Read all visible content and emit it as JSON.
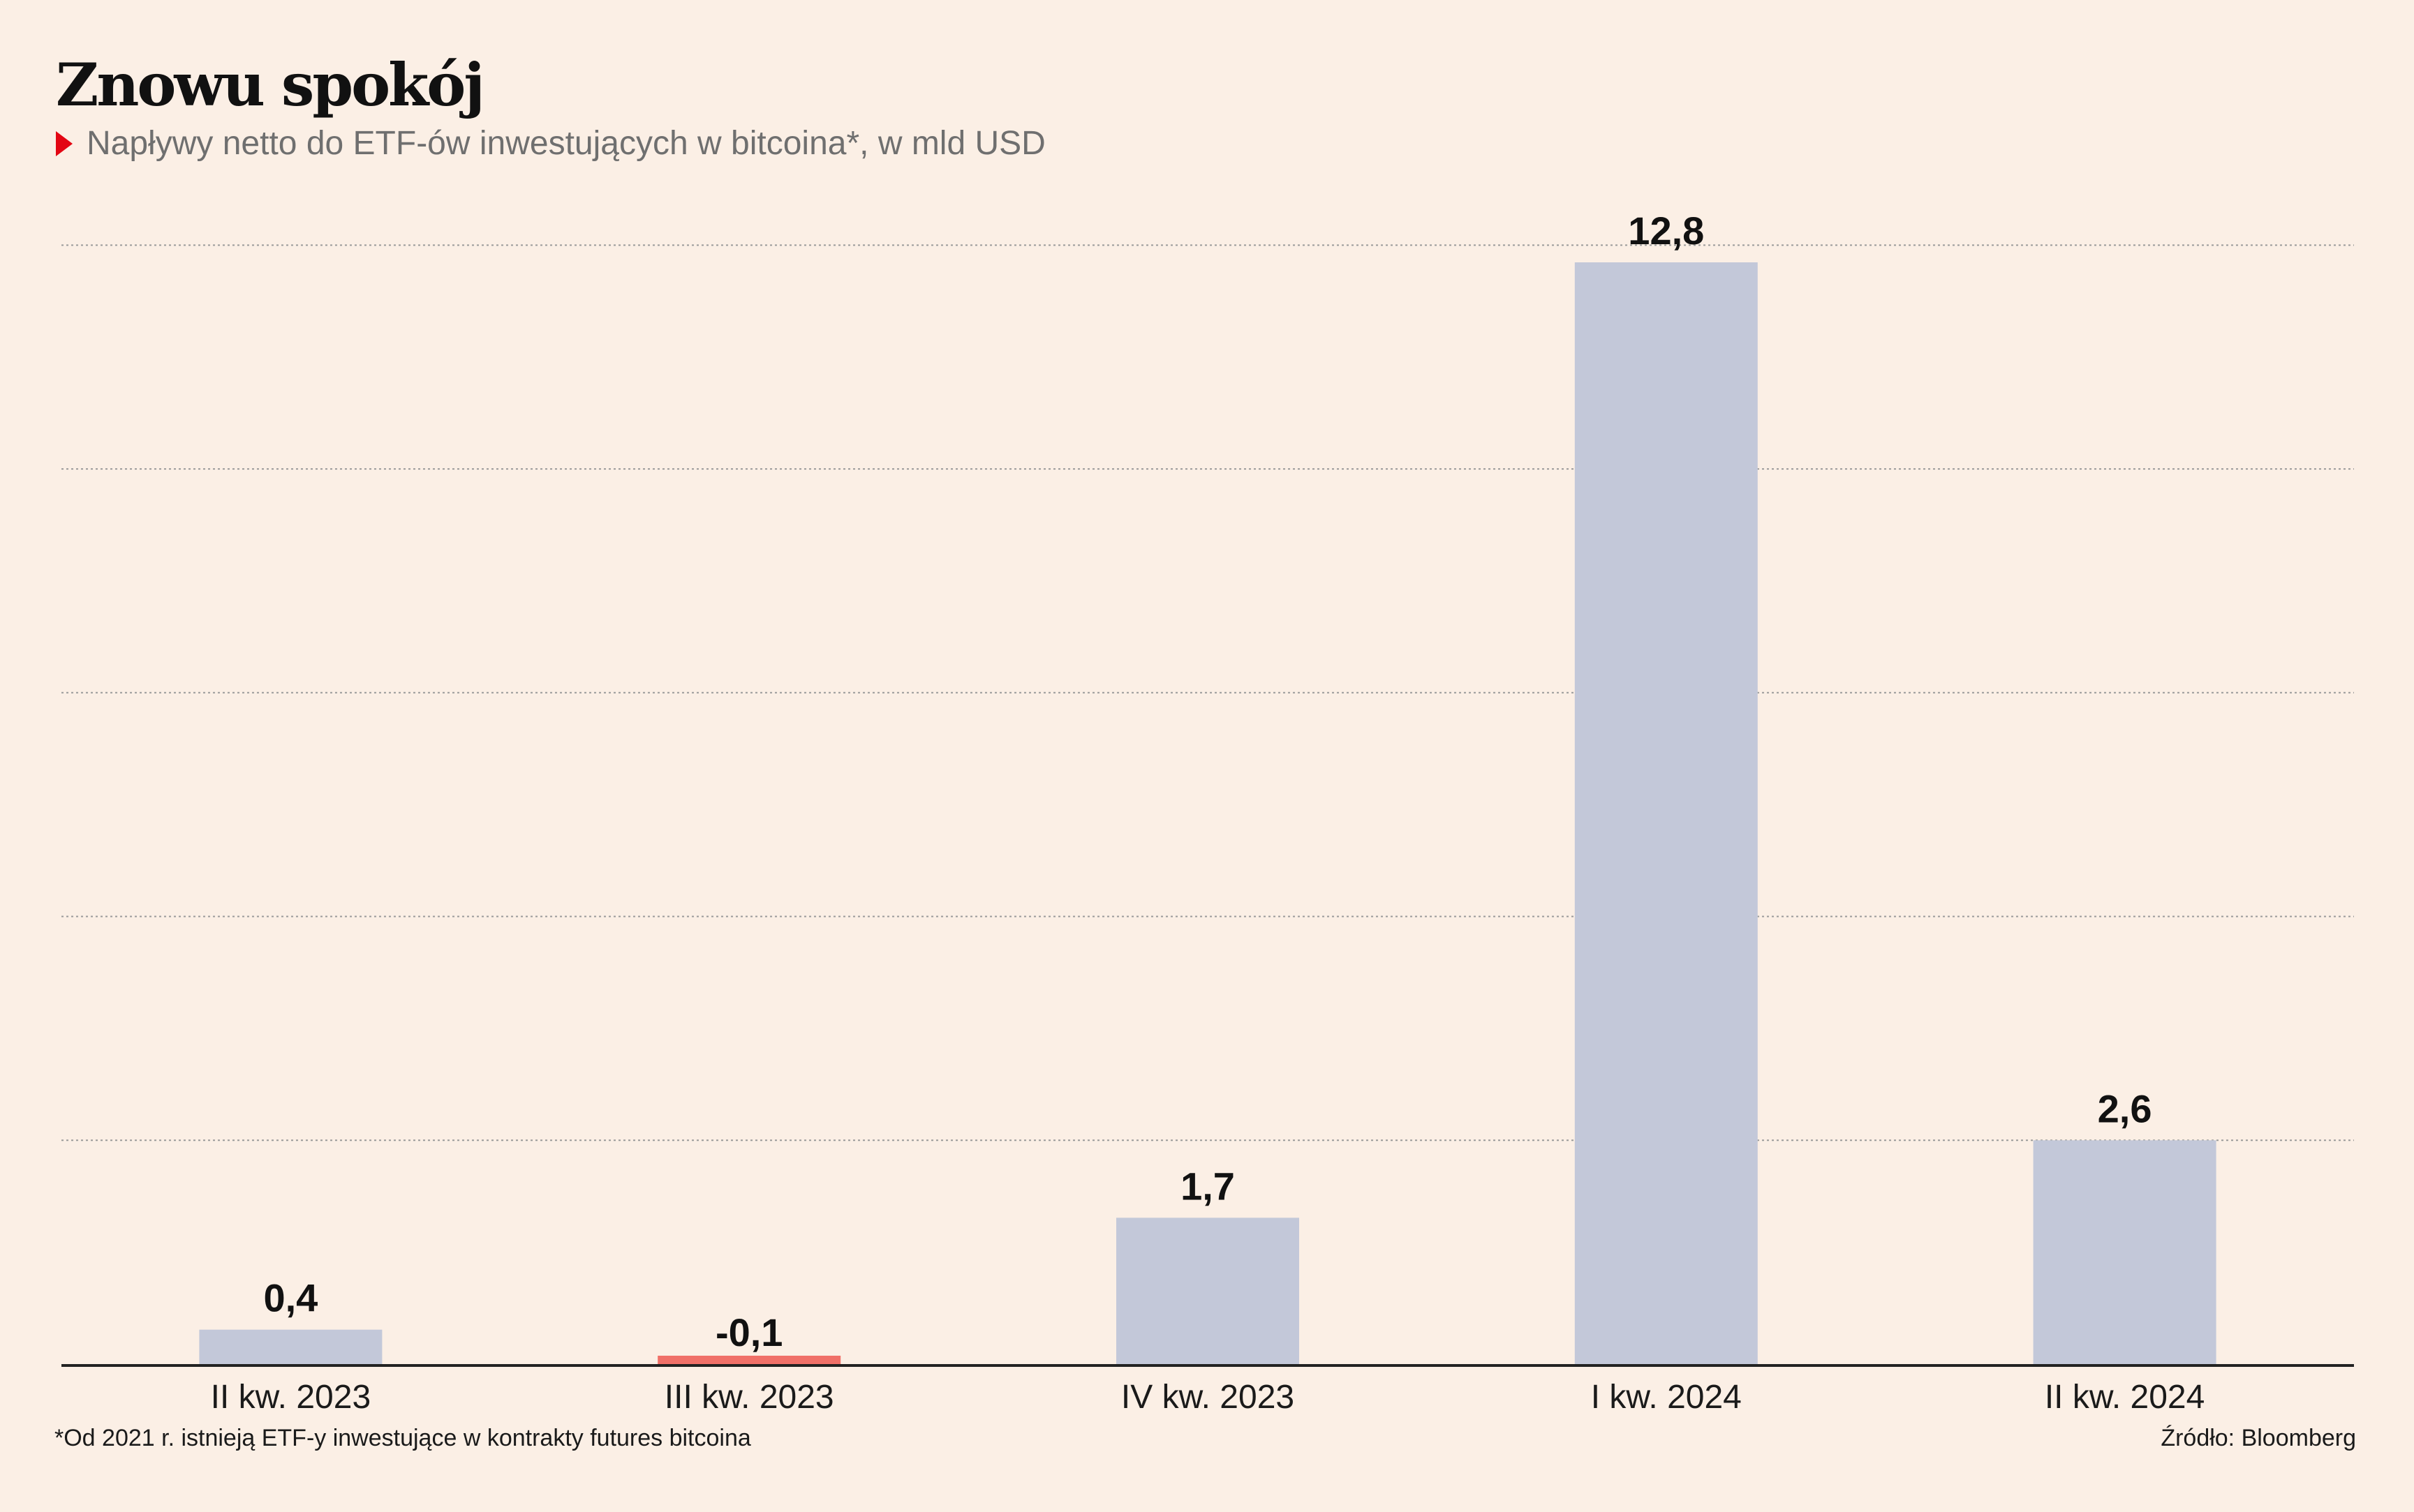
{
  "header": {
    "title": "Znowu spokój",
    "subtitle": "Napływy netto do ETF-ów inwestujących w bitcoina*, w mld USD"
  },
  "footer": {
    "footnote": "*Od 2021 r. istnieją ETF-y inwestujące w kontrakty futures bitcoina",
    "source": "Źródło: Bloomberg"
  },
  "colors": {
    "background": "#fbefe5",
    "bar_positive": "#c3c8d9",
    "bar_negative": "#f07068",
    "accent_marker": "#e30613",
    "grid": "#9a9a9a",
    "axis": "#222222"
  },
  "chart_data": {
    "type": "bar",
    "categories": [
      "II kw. 2023",
      "III kw. 2023",
      "IV kw. 2023",
      "I kw. 2024",
      "II kw. 2024"
    ],
    "values": [
      0.4,
      -0.1,
      1.7,
      12.8,
      2.6
    ],
    "value_labels": [
      "0,4",
      "-0,1",
      "1,7",
      "12,8",
      "2,6"
    ],
    "ylim": [
      0,
      12.8
    ],
    "grid": true,
    "grid_values": [
      2.6,
      5.2,
      7.8,
      10.4,
      13.0
    ],
    "legend": "none"
  }
}
